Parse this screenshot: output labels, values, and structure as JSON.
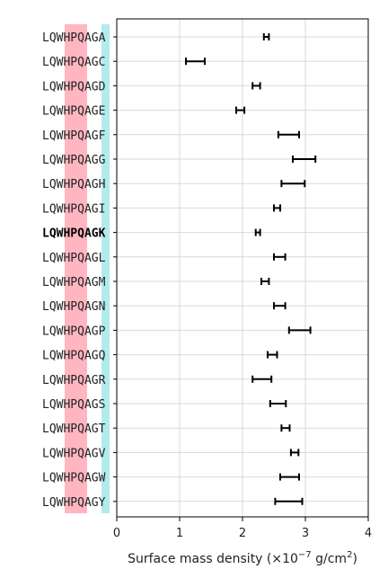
{
  "chart_data": {
    "type": "errorbar",
    "xlabel": "Surface mass density (×10",
    "xlabel_exponent": "−7",
    "xlabel_unit": " g/cm",
    "xlabel_unit_exponent": "2",
    "xlabel_close": ")",
    "xlim": [
      0,
      4
    ],
    "xticks": [
      "0",
      "1",
      "2",
      "3",
      "4"
    ],
    "grid": true,
    "highlight_category": "LQWHPQAGK",
    "highlight_colors": {
      "pink": "#ffb6c1",
      "cyan": "#b2ebee"
    },
    "categories": [
      "LQWHPQAGA",
      "LQWHPQAGC",
      "LQWHPQAGD",
      "LQWHPQAGE",
      "LQWHPQAGF",
      "LQWHPQAGG",
      "LQWHPQAGH",
      "LQWHPQAGI",
      "LQWHPQAGK",
      "LQWHPQAGL",
      "LQWHPQAGM",
      "LQWHPQAGN",
      "LQWHPQAGP",
      "LQWHPQAGQ",
      "LQWHPQAGR",
      "LQWHPQAGS",
      "LQWHPQAGT",
      "LQWHPQAGV",
      "LQWHPQAGW",
      "LQWHPQAGY"
    ],
    "intervals": [
      [
        2.34,
        2.42
      ],
      [
        1.1,
        1.4
      ],
      [
        2.16,
        2.28
      ],
      [
        1.9,
        2.03
      ],
      [
        2.57,
        2.9
      ],
      [
        2.8,
        3.16
      ],
      [
        2.62,
        2.99
      ],
      [
        2.5,
        2.6
      ],
      [
        2.21,
        2.28
      ],
      [
        2.5,
        2.68
      ],
      [
        2.3,
        2.42
      ],
      [
        2.5,
        2.68
      ],
      [
        2.74,
        3.08
      ],
      [
        2.4,
        2.55
      ],
      [
        2.16,
        2.46
      ],
      [
        2.44,
        2.69
      ],
      [
        2.62,
        2.75
      ],
      [
        2.77,
        2.89
      ],
      [
        2.6,
        2.9
      ],
      [
        2.52,
        2.95
      ]
    ]
  }
}
